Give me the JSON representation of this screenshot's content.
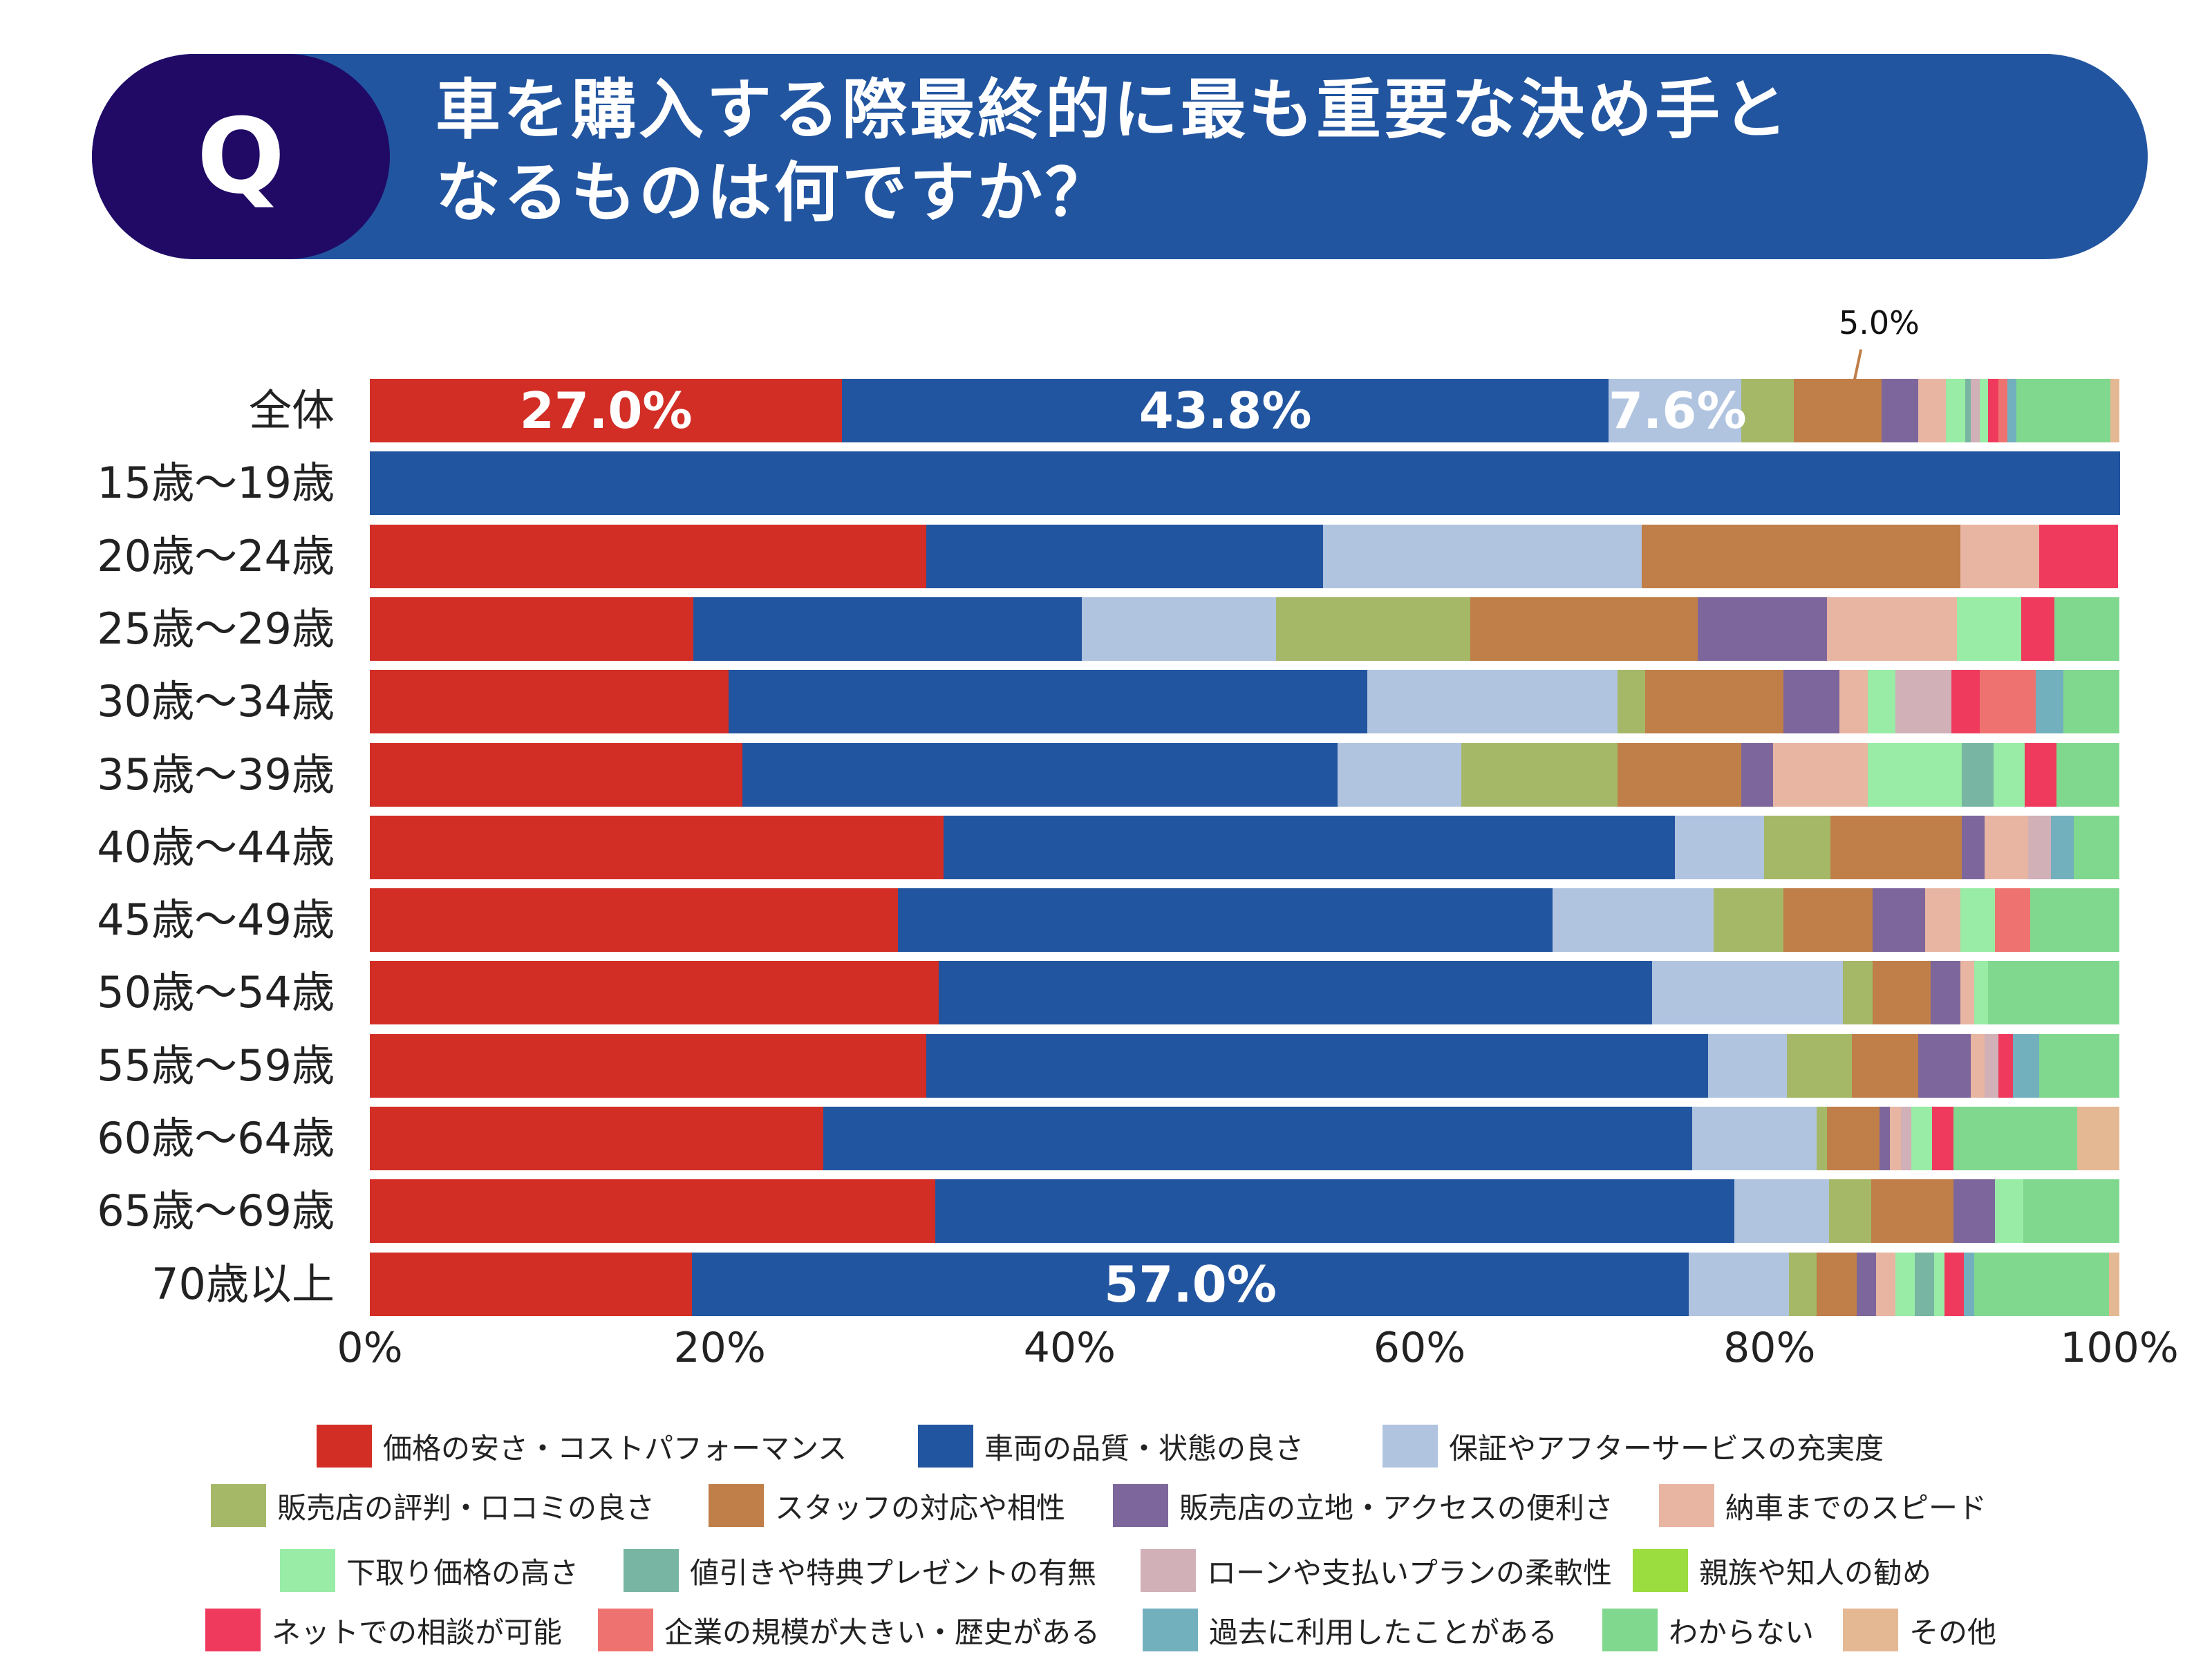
{
  "header": {
    "badge": "Q",
    "title_line1": "車を購入する際最終的に最も重要な決め手と",
    "title_line2": "なるものは何ですか？"
  },
  "chart_data": {
    "type": "bar",
    "orientation": "horizontal-stacked-100",
    "title": "車を購入する際最終的に最も重要な決め手となるものは何ですか？",
    "categories": [
      "全体",
      "15歳〜19歳",
      "20歳〜24歳",
      "25歳〜29歳",
      "30歳〜34歳",
      "35歳〜39歳",
      "40歳〜44歳",
      "45歳〜49歳",
      "50歳〜54歳",
      "55歳〜59歳",
      "60歳〜64歳",
      "65歳〜69歳",
      "70歳以上"
    ],
    "xlim": [
      0,
      100
    ],
    "x_ticks": [
      "0%",
      "20%",
      "40%",
      "60%",
      "80%",
      "100%"
    ],
    "legend_position": "bottom",
    "series": [
      {
        "name": "価格の安さ・コストパフォーマンス",
        "color": "#D22E26",
        "values": [
          27.0,
          0,
          31.8,
          18.5,
          20.5,
          21.3,
          32.8,
          30.2,
          32.5,
          31.8,
          25.9,
          32.3,
          18.4
        ]
      },
      {
        "name": "車両の品質・状態の良さ",
        "color": "#2255A0",
        "values": [
          43.8,
          100,
          22.7,
          22.2,
          36.5,
          34.0,
          41.8,
          37.4,
          40.8,
          44.7,
          49.7,
          45.7,
          57.0
        ]
      },
      {
        "name": "保証やアフターサービスの充実度",
        "color": "#B0C4E0",
        "values": [
          7.6,
          0,
          18.2,
          11.1,
          14.3,
          7.1,
          5.1,
          9.2,
          10.9,
          4.5,
          7.1,
          5.4,
          5.7
        ]
      },
      {
        "name": "販売店の評判・口コミの良さ",
        "color": "#A5B868",
        "values": [
          3.0,
          0,
          0,
          11.1,
          1.6,
          8.9,
          3.8,
          4.0,
          1.7,
          3.7,
          0.6,
          2.4,
          1.6
        ]
      },
      {
        "name": "スタッフの対応や相性",
        "color": "#C07E48",
        "values": [
          5.0,
          0,
          18.2,
          13.0,
          7.9,
          7.1,
          7.5,
          5.1,
          3.3,
          3.8,
          3.0,
          4.7,
          2.3
        ]
      },
      {
        "name": "販売店の立地・アクセスの便利さ",
        "color": "#7D669C",
        "values": [
          2.1,
          0,
          0,
          7.4,
          3.2,
          1.8,
          1.3,
          3.0,
          1.7,
          3.0,
          0.6,
          2.4,
          1.1
        ]
      },
      {
        "name": "納車までのスピード",
        "color": "#E8B5A2",
        "values": [
          1.6,
          0,
          4.5,
          7.4,
          1.6,
          5.4,
          2.5,
          2.0,
          0.8,
          0.8,
          0.6,
          0,
          1.1
        ]
      },
      {
        "name": "下取り価格の高さ",
        "color": "#98ECA5",
        "values": [
          1.1,
          0,
          0,
          3.7,
          1.6,
          5.4,
          0,
          2.0,
          0.8,
          0,
          0,
          1.6,
          1.1
        ]
      },
      {
        "name": "値引きや特典プレゼントの有無",
        "color": "#78B5A2",
        "values": [
          0.3,
          0,
          0,
          0,
          0,
          1.8,
          0,
          0,
          0,
          0,
          0,
          0,
          1.1
        ]
      },
      {
        "name": "ローンや支払いプランの柔軟性",
        "color": "#D1B0B8",
        "values": [
          0.5,
          0,
          0,
          0,
          3.2,
          0,
          1.3,
          0,
          0,
          0.8,
          0.6,
          0,
          0
        ]
      },
      {
        "name": "親族や知人の勧め",
        "color": "#9BDC3E",
        "bar_color": "#98ECA5",
        "values": [
          0.5,
          0,
          0,
          0,
          0,
          1.8,
          0,
          0,
          0,
          0,
          1.2,
          0,
          0.6
        ]
      },
      {
        "name": "ネットでの相談が可能",
        "color": "#EF3A5E",
        "values": [
          0.6,
          0,
          4.5,
          1.9,
          1.6,
          1.8,
          0,
          0,
          0,
          0.8,
          1.2,
          0,
          1.1
        ]
      },
      {
        "name": "企業の規模が大きい・歴史がある",
        "color": "#EE7370",
        "values": [
          0.5,
          0,
          0,
          0,
          3.2,
          0,
          0,
          2.0,
          0,
          0,
          0,
          0,
          0
        ]
      },
      {
        "name": "過去に利用したことがある",
        "color": "#72B0BE",
        "values": [
          0.5,
          0,
          0,
          0,
          1.6,
          0,
          1.3,
          0,
          0,
          1.5,
          0,
          0,
          0.6
        ]
      },
      {
        "name": "わからない",
        "color": "#80D88E",
        "values": [
          5.4,
          0,
          0,
          3.7,
          3.2,
          3.6,
          2.6,
          5.1,
          7.5,
          4.6,
          7.1,
          5.5,
          7.7
        ]
      },
      {
        "name": "その他",
        "color": "#E5B894",
        "values": [
          0.5,
          0,
          0,
          0,
          0,
          0,
          0,
          0,
          0,
          0,
          2.4,
          0,
          0.6
        ]
      }
    ],
    "data_labels": [
      {
        "row": 0,
        "series": 0,
        "text": "27.0%",
        "placement": "inside"
      },
      {
        "row": 0,
        "series": 1,
        "text": "43.8%",
        "placement": "inside"
      },
      {
        "row": 0,
        "series": 2,
        "text": "7.6%",
        "placement": "inside"
      },
      {
        "row": 0,
        "series": 4,
        "text": "5.0%",
        "placement": "callout-above"
      },
      {
        "row": 12,
        "series": 1,
        "text": "57.0%",
        "placement": "inside"
      }
    ]
  }
}
